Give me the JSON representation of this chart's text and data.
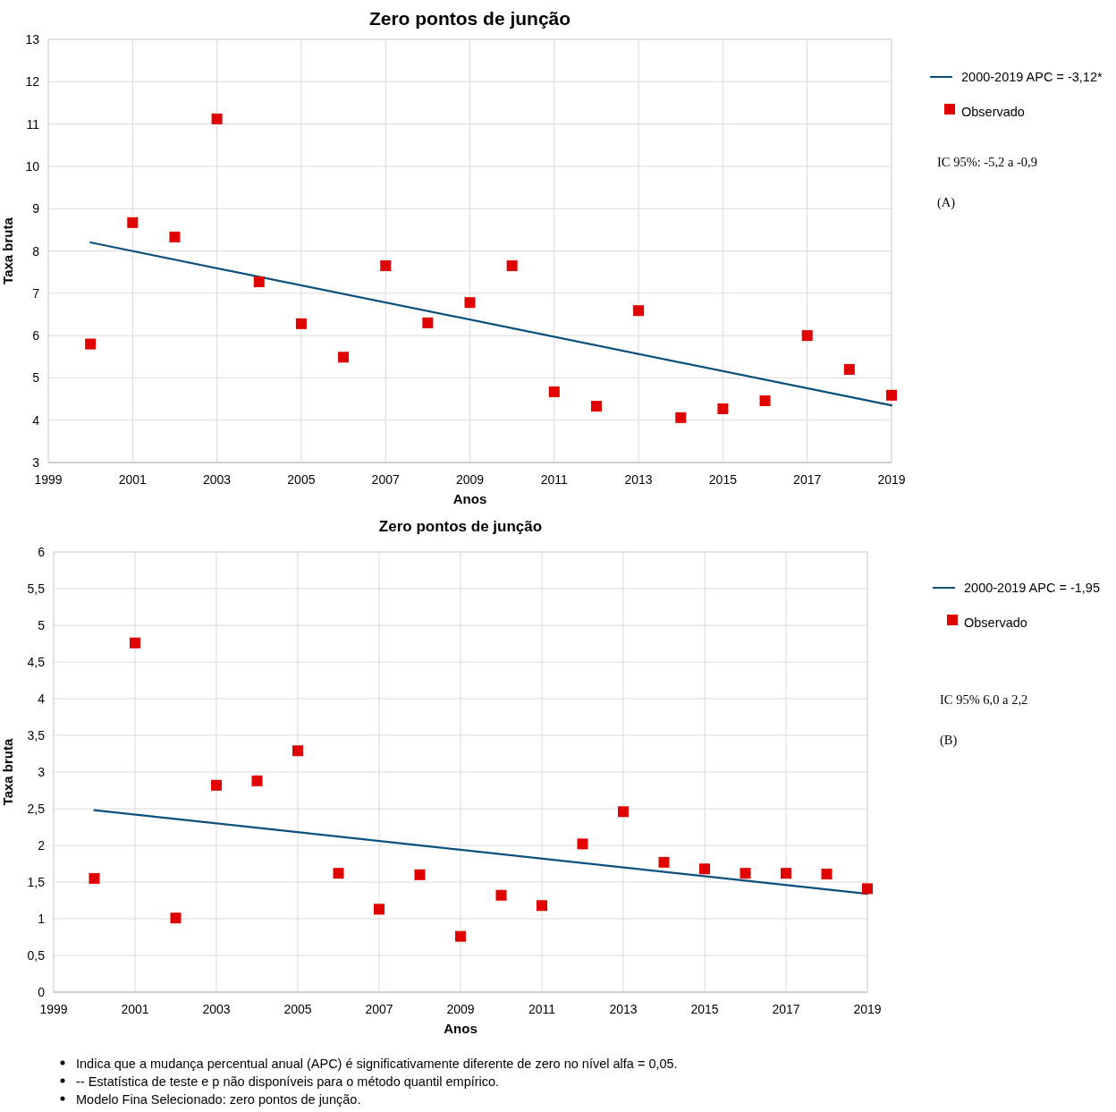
{
  "chart_data": [
    {
      "type": "scatter",
      "title": "Zero pontos de junção",
      "xlabel": "Anos",
      "ylabel": "Taxa bruta",
      "xlim": [
        1999,
        2019
      ],
      "xticks": [
        1999,
        2001,
        2003,
        2005,
        2007,
        2009,
        2011,
        2013,
        2015,
        2017,
        2019
      ],
      "ylim": [
        3,
        13
      ],
      "yticks": [
        3,
        4,
        5,
        6,
        7,
        8,
        9,
        10,
        11,
        12,
        13
      ],
      "grid": true,
      "legend": "right",
      "series": [
        {
          "type": "line",
          "name": "2000-2019 APC = -3,12*",
          "color": "#0b4f7c",
          "x": [
            2000,
            2019
          ],
          "values": [
            8.2,
            4.35
          ]
        },
        {
          "name": "Observado",
          "color": "#e00000",
          "marker": "square",
          "x": [
            2000,
            2001,
            2002,
            2003,
            2004,
            2005,
            2006,
            2007,
            2008,
            2009,
            2010,
            2011,
            2012,
            2013,
            2014,
            2015,
            2016,
            2017,
            2018,
            2019
          ],
          "values": [
            5.8,
            8.67,
            8.33,
            11.12,
            7.27,
            6.28,
            5.49,
            7.65,
            6.3,
            6.78,
            7.65,
            4.67,
            4.33,
            6.59,
            4.06,
            4.27,
            4.46,
            6.0,
            5.2,
            4.59
          ]
        }
      ],
      "annotations": [
        "IC 95%: -5,2 a -0,9",
        "(A)"
      ]
    },
    {
      "type": "scatter",
      "title": "Zero pontos de junção",
      "xlabel": "Anos",
      "ylabel": "Taxa bruta",
      "xlim": [
        1999,
        2019
      ],
      "xticks": [
        1999,
        2001,
        2003,
        2005,
        2007,
        2009,
        2011,
        2013,
        2015,
        2017,
        2019
      ],
      "ylim": [
        0,
        6
      ],
      "yticks": [
        0,
        {
          "value": 0.5,
          "label": "0,5"
        },
        1,
        {
          "value": 1.5,
          "label": "1,5"
        },
        2,
        {
          "value": 2.5,
          "label": "2,5"
        },
        3,
        {
          "value": 3.5,
          "label": "3,5"
        },
        4,
        {
          "value": 4.5,
          "label": "4,5"
        },
        5,
        {
          "value": 5.5,
          "label": "5,5"
        },
        6
      ],
      "grid": true,
      "legend": "right",
      "series": [
        {
          "type": "line",
          "name": "2000-2019 APC = -1,95",
          "color": "#0b4f7c",
          "x": [
            2000,
            2019
          ],
          "values": [
            2.48,
            1.34
          ]
        },
        {
          "name": "Observado",
          "color": "#e00000",
          "marker": "square",
          "x": [
            2000,
            2001,
            2002,
            2003,
            2004,
            2005,
            2006,
            2007,
            2008,
            2009,
            2010,
            2011,
            2012,
            2013,
            2014,
            2015,
            2016,
            2017,
            2018,
            2019
          ],
          "values": [
            1.55,
            4.76,
            1.01,
            2.82,
            2.88,
            3.29,
            1.62,
            1.13,
            1.6,
            0.76,
            1.32,
            1.18,
            2.02,
            2.46,
            1.77,
            1.68,
            1.62,
            1.62,
            1.61,
            1.41
          ]
        }
      ],
      "annotations": [
        "IC 95% 6,0 a 2,2",
        "(B)",
        "Indica que a mudança percentual anual (APC) é significativamente diferente de zero no nível alfa = 0,05.",
        "-- Estatística de teste e p não disponíveis para o método quantil empírico.",
        "Modelo Fina Selecionado: zero pontos de junção."
      ]
    }
  ]
}
